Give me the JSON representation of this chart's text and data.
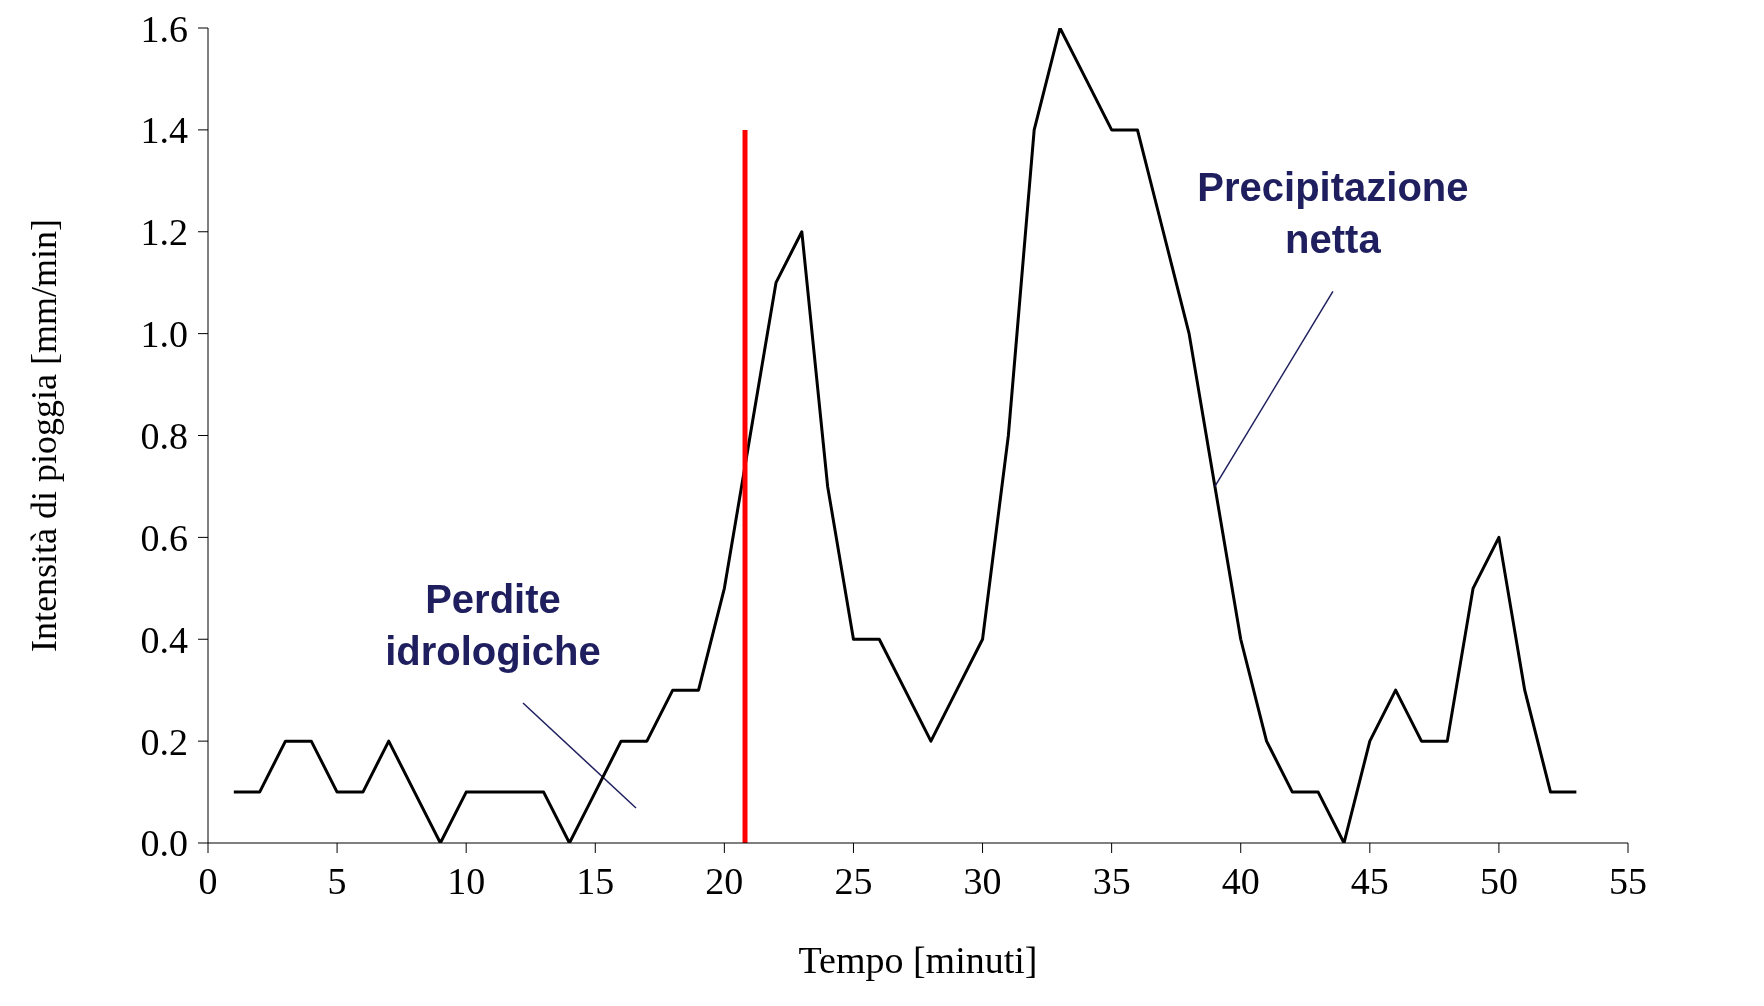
{
  "chart_data": {
    "type": "line",
    "xlabel": "Tempo  [minuti]",
    "ylabel": "Intensità di pioggia  [mm/min]",
    "xlim": [
      0,
      55
    ],
    "xticks": [
      0,
      5,
      10,
      15,
      20,
      25,
      30,
      35,
      40,
      45,
      50,
      55
    ],
    "ylim": [
      0,
      1.6
    ],
    "yticks": [
      {
        "value": 0,
        "label": "0.0"
      },
      {
        "value": 0.2,
        "label": "0.2"
      },
      {
        "value": 0.4,
        "label": "0.4"
      },
      {
        "value": 0.6,
        "label": "0.6"
      },
      {
        "value": 0.8,
        "label": "0.8"
      },
      {
        "value": 1,
        "label": "1.0"
      },
      {
        "value": 1.2,
        "label": "1.2"
      },
      {
        "value": 1.4,
        "label": "1.4"
      },
      {
        "value": 1.6,
        "label": "1.6"
      }
    ],
    "marker": "none",
    "line_style": "solid",
    "series": [
      {
        "color": "#000000",
        "x": [
          1,
          2,
          3,
          4,
          5,
          6,
          7,
          8,
          9,
          10,
          11,
          12,
          13,
          14,
          15,
          16,
          17,
          18,
          19,
          20,
          21,
          22,
          23,
          24,
          25,
          26,
          27,
          28,
          29,
          30,
          31,
          32,
          33,
          34,
          35,
          36,
          37,
          38,
          39,
          40,
          41,
          42,
          43,
          44,
          45,
          46,
          47,
          48,
          49,
          50,
          51,
          52,
          53
        ],
        "values": [
          0.1,
          0.1,
          0.2,
          0.2,
          0.1,
          0.1,
          0.2,
          0.1,
          0,
          0.1,
          0.1,
          0.1,
          0.1,
          0,
          0.1,
          0.2,
          0.2,
          0.3,
          0.3,
          0.5,
          0.8,
          1.1,
          1.2,
          0.7,
          0.4,
          0.4,
          0.3,
          0.2,
          0.3,
          0.4,
          0.8,
          1.4,
          1.6,
          1.5,
          1.4,
          1.4,
          1.2,
          1,
          0.7,
          0.4,
          0.2,
          0.1,
          0.1,
          0,
          0.2,
          0.3,
          0.2,
          0.2,
          0.5,
          0.6,
          0.3,
          0.1,
          0.1
        ]
      },
      {
        "color": "#ff0000",
        "x": [
          20.8,
          20.8
        ],
        "values": [
          0,
          1.4
        ]
      }
    ],
    "annotations": [
      "Perdite idrologiche",
      {
        "text": "Precipitazione netta",
        "x": 39,
        "y": 0.7
      }
    ]
  }
}
